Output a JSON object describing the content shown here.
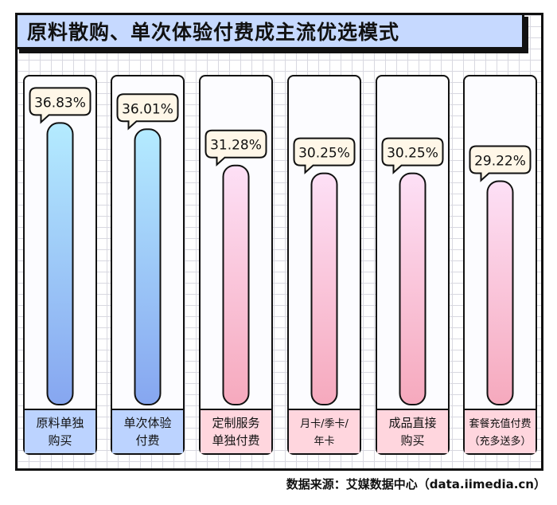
{
  "chart_data": {
    "type": "bar",
    "title": "原料散购、单次体验付费成主流优选模式",
    "categories": [
      [
        "原料单独",
        "购买"
      ],
      [
        "单次体验",
        "付费"
      ],
      [
        "定制服务",
        "单独付费"
      ],
      [
        "月卡/季卡/",
        "年卡"
      ],
      [
        "成品直接",
        "购买"
      ],
      [
        "套餐充值付费",
        "（充多送多）"
      ]
    ],
    "values": [
      36.83,
      36.01,
      31.28,
      30.25,
      30.25,
      29.22
    ],
    "value_labels": [
      "36.83%",
      "36.01%",
      "31.28%",
      "30.25%",
      "30.25%",
      "29.22%"
    ],
    "unit": "%",
    "colors": {
      "blue_bar_top": "#b4ebff",
      "blue_bar_bottom": "#86a6f0",
      "pink_bar_top": "#fde0f6",
      "pink_bar_bottom": "#f6a9bd",
      "blue_label_bg": "#bcd3ff",
      "pink_label_bg": "#ffd6de",
      "bubble_bg": "#fff7e8"
    },
    "highlight_count": 2
  },
  "footer": {
    "source": "数据来源：艾媒数据中心（data.iimedia.cn）"
  }
}
